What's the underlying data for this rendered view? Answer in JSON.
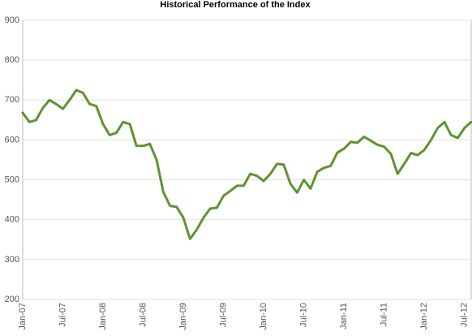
{
  "chart_data": {
    "type": "line",
    "title": "Historical Performance of the Index",
    "categories": [
      "Jan-07",
      null,
      null,
      null,
      null,
      null,
      "Jul-07",
      null,
      null,
      null,
      null,
      null,
      "Jan-08",
      null,
      null,
      null,
      null,
      null,
      "Jul-08",
      null,
      null,
      null,
      null,
      null,
      "Jan-09",
      null,
      null,
      null,
      null,
      null,
      "Jul-09",
      null,
      null,
      null,
      null,
      null,
      "Jan-10",
      null,
      null,
      null,
      null,
      null,
      "Jul-10",
      null,
      null,
      null,
      null,
      null,
      "Jan-11",
      null,
      null,
      null,
      null,
      null,
      "Jul-11",
      null,
      null,
      null,
      null,
      null,
      "Jan-12",
      null,
      null,
      null,
      null,
      null,
      "Jul-12",
      null
    ],
    "values": [
      668,
      645,
      650,
      680,
      700,
      690,
      678,
      700,
      725,
      718,
      690,
      685,
      640,
      612,
      618,
      645,
      640,
      585,
      585,
      590,
      550,
      470,
      435,
      432,
      405,
      352,
      375,
      405,
      428,
      430,
      460,
      472,
      485,
      485,
      515,
      510,
      497,
      515,
      540,
      538,
      490,
      468,
      500,
      478,
      520,
      530,
      535,
      568,
      578,
      595,
      593,
      608,
      598,
      588,
      583,
      565,
      515,
      540,
      567,
      562,
      575,
      600,
      630,
      645,
      612,
      605,
      630,
      645
    ],
    "color": "#5f9330",
    "ylim": [
      200,
      900
    ],
    "yticks": [
      200,
      300,
      400,
      500,
      600,
      700,
      800,
      900
    ],
    "grid": true
  }
}
